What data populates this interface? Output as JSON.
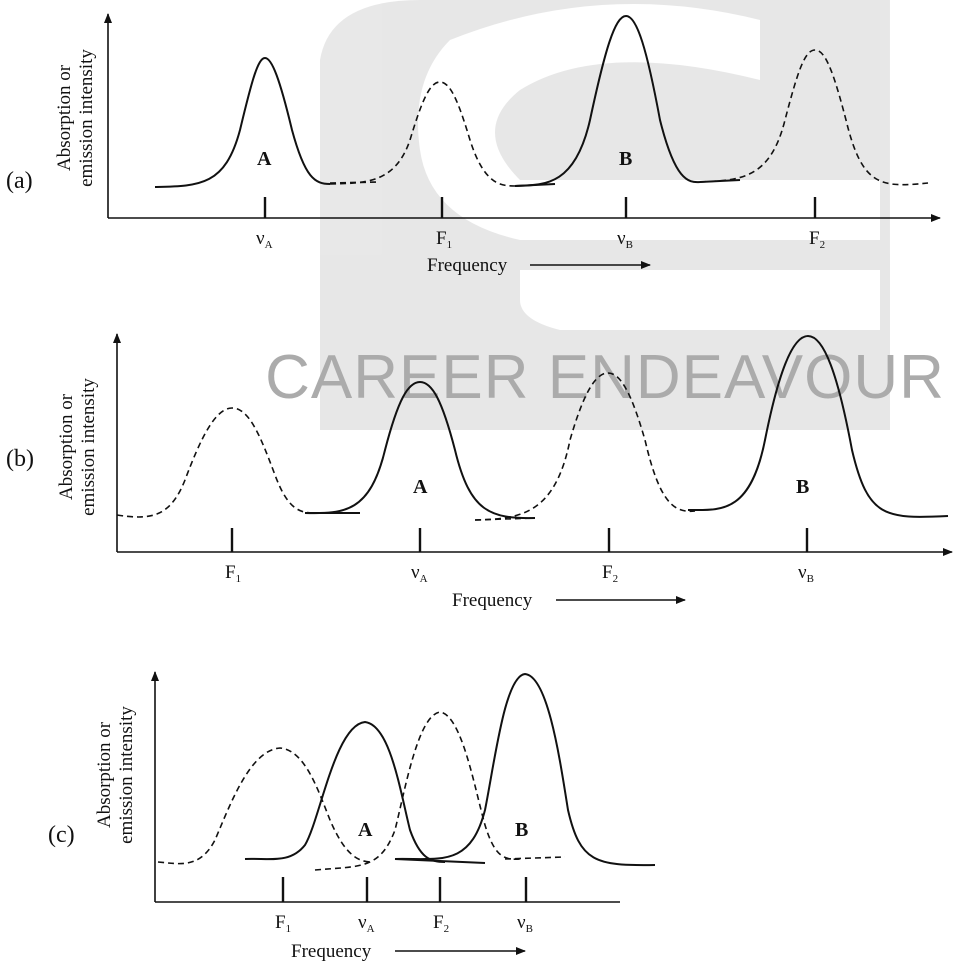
{
  "watermark": {
    "text": "CAREER ENDEAVOUR"
  },
  "panels": [
    {
      "label": "(a)",
      "ylabel_line1": "Absorption or",
      "ylabel_line2": "emission intensity",
      "xlabel": "Frequency",
      "peaks": [
        {
          "name": "A",
          "style": "solid"
        },
        {
          "name": "F1",
          "style": "dashed"
        },
        {
          "name": "B",
          "style": "solid"
        },
        {
          "name": "F2",
          "style": "dashed"
        }
      ],
      "ticks": [
        {
          "sym": "ν",
          "sub": "A"
        },
        {
          "sym": "F",
          "sub": "1"
        },
        {
          "sym": "ν",
          "sub": "B"
        },
        {
          "sym": "F",
          "sub": "2"
        }
      ],
      "peak_labels": [
        "A",
        "B"
      ]
    },
    {
      "label": "(b)",
      "ylabel_line1": "Absorption or",
      "ylabel_line2": "emission intensity",
      "xlabel": "Frequency",
      "ticks": [
        {
          "sym": "F",
          "sub": "1"
        },
        {
          "sym": "ν",
          "sub": "A"
        },
        {
          "sym": "F",
          "sub": "2"
        },
        {
          "sym": "ν",
          "sub": "B"
        }
      ],
      "peak_labels": [
        "A",
        "B"
      ]
    },
    {
      "label": "(c)",
      "ylabel_line1": "Absorption or",
      "ylabel_line2": "emission intensity",
      "xlabel": "Frequency",
      "ticks": [
        {
          "sym": "F",
          "sub": "1"
        },
        {
          "sym": "ν",
          "sub": "A"
        },
        {
          "sym": "F",
          "sub": "2"
        },
        {
          "sym": "ν",
          "sub": "B"
        }
      ],
      "peak_labels": [
        "A",
        "B"
      ]
    }
  ]
}
